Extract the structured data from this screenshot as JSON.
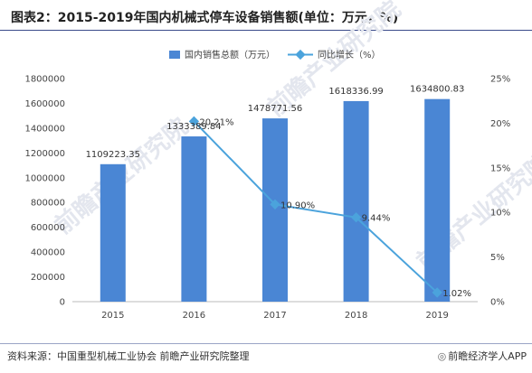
{
  "header": {
    "title": "图表2：2015-2019年国内机械式停车设备销售额(单位：万元，%)"
  },
  "footer": {
    "source": "资料来源：中国重型机械工业协会 前瞻产业研究院整理",
    "brand": "前瞻经济学人APP"
  },
  "colors": {
    "bar": "#4a86d4",
    "line": "#4ba3dc",
    "title_rule": "#3a4a8a"
  },
  "watermark": "前瞻产业研究院",
  "chart_data": {
    "type": "bar",
    "categories": [
      "2015",
      "2016",
      "2017",
      "2018",
      "2019"
    ],
    "series": [
      {
        "name": "国内销售总额（万元）",
        "type": "bar",
        "axis": "left",
        "values": [
          1109223.35,
          1333389.84,
          1478771.56,
          1618336.99,
          1634800.83
        ],
        "labels": [
          "1109223.35",
          "1333389.84",
          "1478771.56",
          "1618336.99",
          "1634800.83"
        ]
      },
      {
        "name": "同比增长（%）",
        "type": "line",
        "axis": "right",
        "x": [
          "2016",
          "2017",
          "2018",
          "2019"
        ],
        "values": [
          20.21,
          10.9,
          9.44,
          1.02
        ],
        "labels": [
          "20.21%",
          "10.90%",
          "9.44%",
          "1.02%"
        ]
      }
    ],
    "left_axis": {
      "ylim": [
        0,
        1800000
      ],
      "ticks": [
        "0",
        "200000",
        "400000",
        "600000",
        "800000",
        "1000000",
        "1200000",
        "1400000",
        "1600000",
        "1800000"
      ]
    },
    "right_axis": {
      "ylim": [
        0,
        25
      ],
      "ticks": [
        "0%",
        "5%",
        "10%",
        "15%",
        "20%",
        "25%"
      ]
    },
    "grid": false,
    "legend": "top-center"
  }
}
